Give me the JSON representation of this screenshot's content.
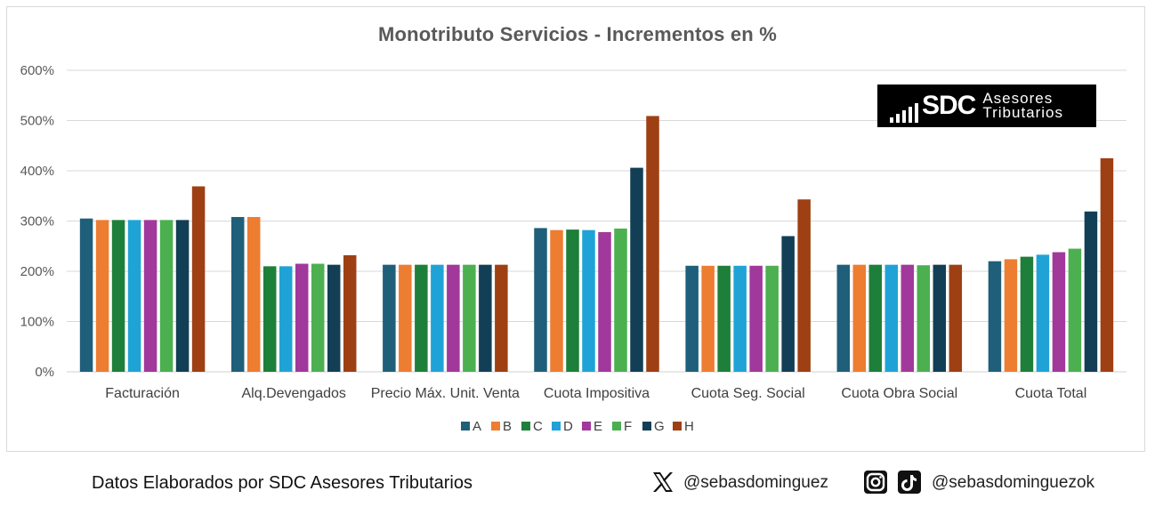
{
  "chart_data": {
    "type": "bar",
    "title": "Monotributo Servicios - Incrementos en %",
    "categories": [
      "Facturación",
      "Alq.Devengados",
      "Precio Máx. Unit. Venta",
      "Cuota Impositiva",
      "Cuota Seg. Social",
      "Cuota Obra Social",
      "Cuota Total"
    ],
    "series": [
      {
        "name": "A",
        "color": "#1f5f7a",
        "values": [
          305,
          308,
          213,
          286,
          211,
          213,
          220
        ]
      },
      {
        "name": "B",
        "color": "#ed7d31",
        "values": [
          302,
          308,
          213,
          282,
          211,
          213,
          224
        ]
      },
      {
        "name": "C",
        "color": "#1e7f3a",
        "values": [
          302,
          210,
          213,
          283,
          211,
          213,
          229
        ]
      },
      {
        "name": "D",
        "color": "#1fa3d6",
        "values": [
          302,
          210,
          213,
          282,
          211,
          213,
          233
        ]
      },
      {
        "name": "E",
        "color": "#a1389b",
        "values": [
          302,
          215,
          213,
          278,
          211,
          213,
          238
        ]
      },
      {
        "name": "F",
        "color": "#4caf50",
        "values": [
          302,
          215,
          213,
          285,
          211,
          212,
          245
        ]
      },
      {
        "name": "G",
        "color": "#123f55",
        "values": [
          302,
          213,
          213,
          406,
          270,
          213,
          319
        ]
      },
      {
        "name": "H",
        "color": "#9e4013",
        "values": [
          369,
          232,
          213,
          509,
          343,
          213,
          425
        ]
      }
    ],
    "ylim": [
      0,
      600
    ],
    "yticks": [
      0,
      100,
      200,
      300,
      400,
      500,
      600
    ],
    "ytick_labels": [
      "0%",
      "100%",
      "200%",
      "300%",
      "400%",
      "500%",
      "600%"
    ],
    "grid": true,
    "legend_position": "bottom"
  },
  "logo": {
    "mark": "SDC",
    "line1": "Asesores",
    "line2": "Tributarios"
  },
  "footer": {
    "credit": "Datos Elaborados por SDC Asesores Tributarios",
    "x_handle": "@sebasdominguez",
    "ig_tiktok_handle": "@sebasdominguezok"
  }
}
